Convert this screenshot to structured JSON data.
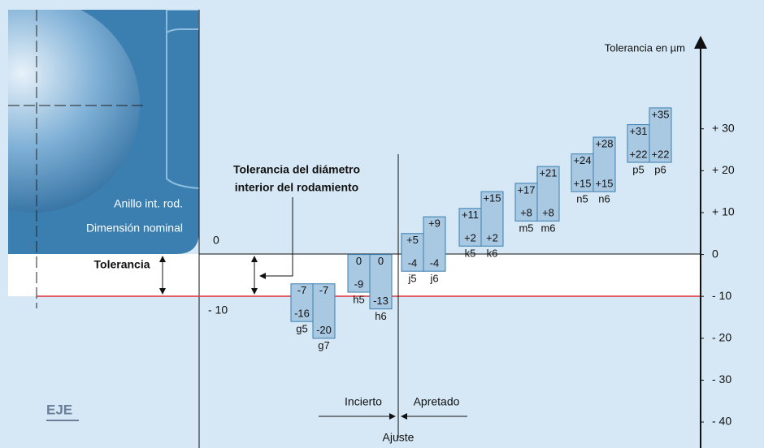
{
  "axis": {
    "title": "Tolerancia en µm",
    "ylim": [
      -46,
      53
    ],
    "yticks": [
      {
        "value": 30,
        "label": "+ 30"
      },
      {
        "value": 20,
        "label": "+ 20"
      },
      {
        "value": 10,
        "label": "+ 10"
      },
      0,
      {
        "value": -10,
        "label": "- 10"
      },
      {
        "value": -20,
        "label": "- 20"
      },
      {
        "value": -30,
        "label": "- 30"
      },
      {
        "value": -40,
        "label": "- 40"
      }
    ]
  },
  "bearing": {
    "line1": "Anillo int. rod.",
    "line2": "Dimensión nominal"
  },
  "labels": {
    "zero": "0",
    "minus_ten": "- 10",
    "tolerance": "Tolerancia",
    "bore_tolerance_1": "Tolerancia del diámetro",
    "bore_tolerance_2": "interior del rodamiento",
    "uncertain": "Incierto",
    "tight": "Apretado",
    "fit": "Ajuste",
    "shaft": "EJE"
  },
  "fits": [
    {
      "name": "g5",
      "upper": -7,
      "lower": -16
    },
    {
      "name": "g7",
      "upper": -7,
      "lower": -20
    },
    {
      "name": "h5",
      "upper": 0,
      "lower": -9
    },
    {
      "name": "h6",
      "upper": 0,
      "lower": -13
    },
    {
      "name": "j5",
      "upper": {
        "value": 5,
        "label": "+5"
      },
      "lower": -4
    },
    {
      "name": "j6",
      "upper": {
        "value": 9,
        "label": "+9"
      },
      "lower": -4
    },
    {
      "name": "k5",
      "upper": {
        "value": 11,
        "label": "+11"
      },
      "lower": {
        "value": 2,
        "label": "+2"
      }
    },
    {
      "name": "k6",
      "upper": {
        "value": 15,
        "label": "+15"
      },
      "lower": {
        "value": 2,
        "label": "+2"
      }
    },
    {
      "name": "m5",
      "upper": {
        "value": 17,
        "label": "+17"
      },
      "lower": {
        "value": 8,
        "label": "+8"
      }
    },
    {
      "name": "m6",
      "upper": {
        "value": 21,
        "label": "+21"
      },
      "lower": {
        "value": 8,
        "label": "+8"
      }
    },
    {
      "name": "n5",
      "upper": {
        "value": 24,
        "label": "+24"
      },
      "lower": {
        "value": 15,
        "label": "+15"
      }
    },
    {
      "name": "n6",
      "upper": {
        "value": 28,
        "label": "+28"
      },
      "lower": {
        "value": 15,
        "label": "+15"
      }
    },
    {
      "name": "p5",
      "upper": {
        "value": 31,
        "label": "+31"
      },
      "lower": {
        "value": 22,
        "label": "+22"
      }
    },
    {
      "name": "p6",
      "upper": {
        "value": 35,
        "label": "+35"
      },
      "lower": {
        "value": 22,
        "label": "+22"
      }
    }
  ]
}
